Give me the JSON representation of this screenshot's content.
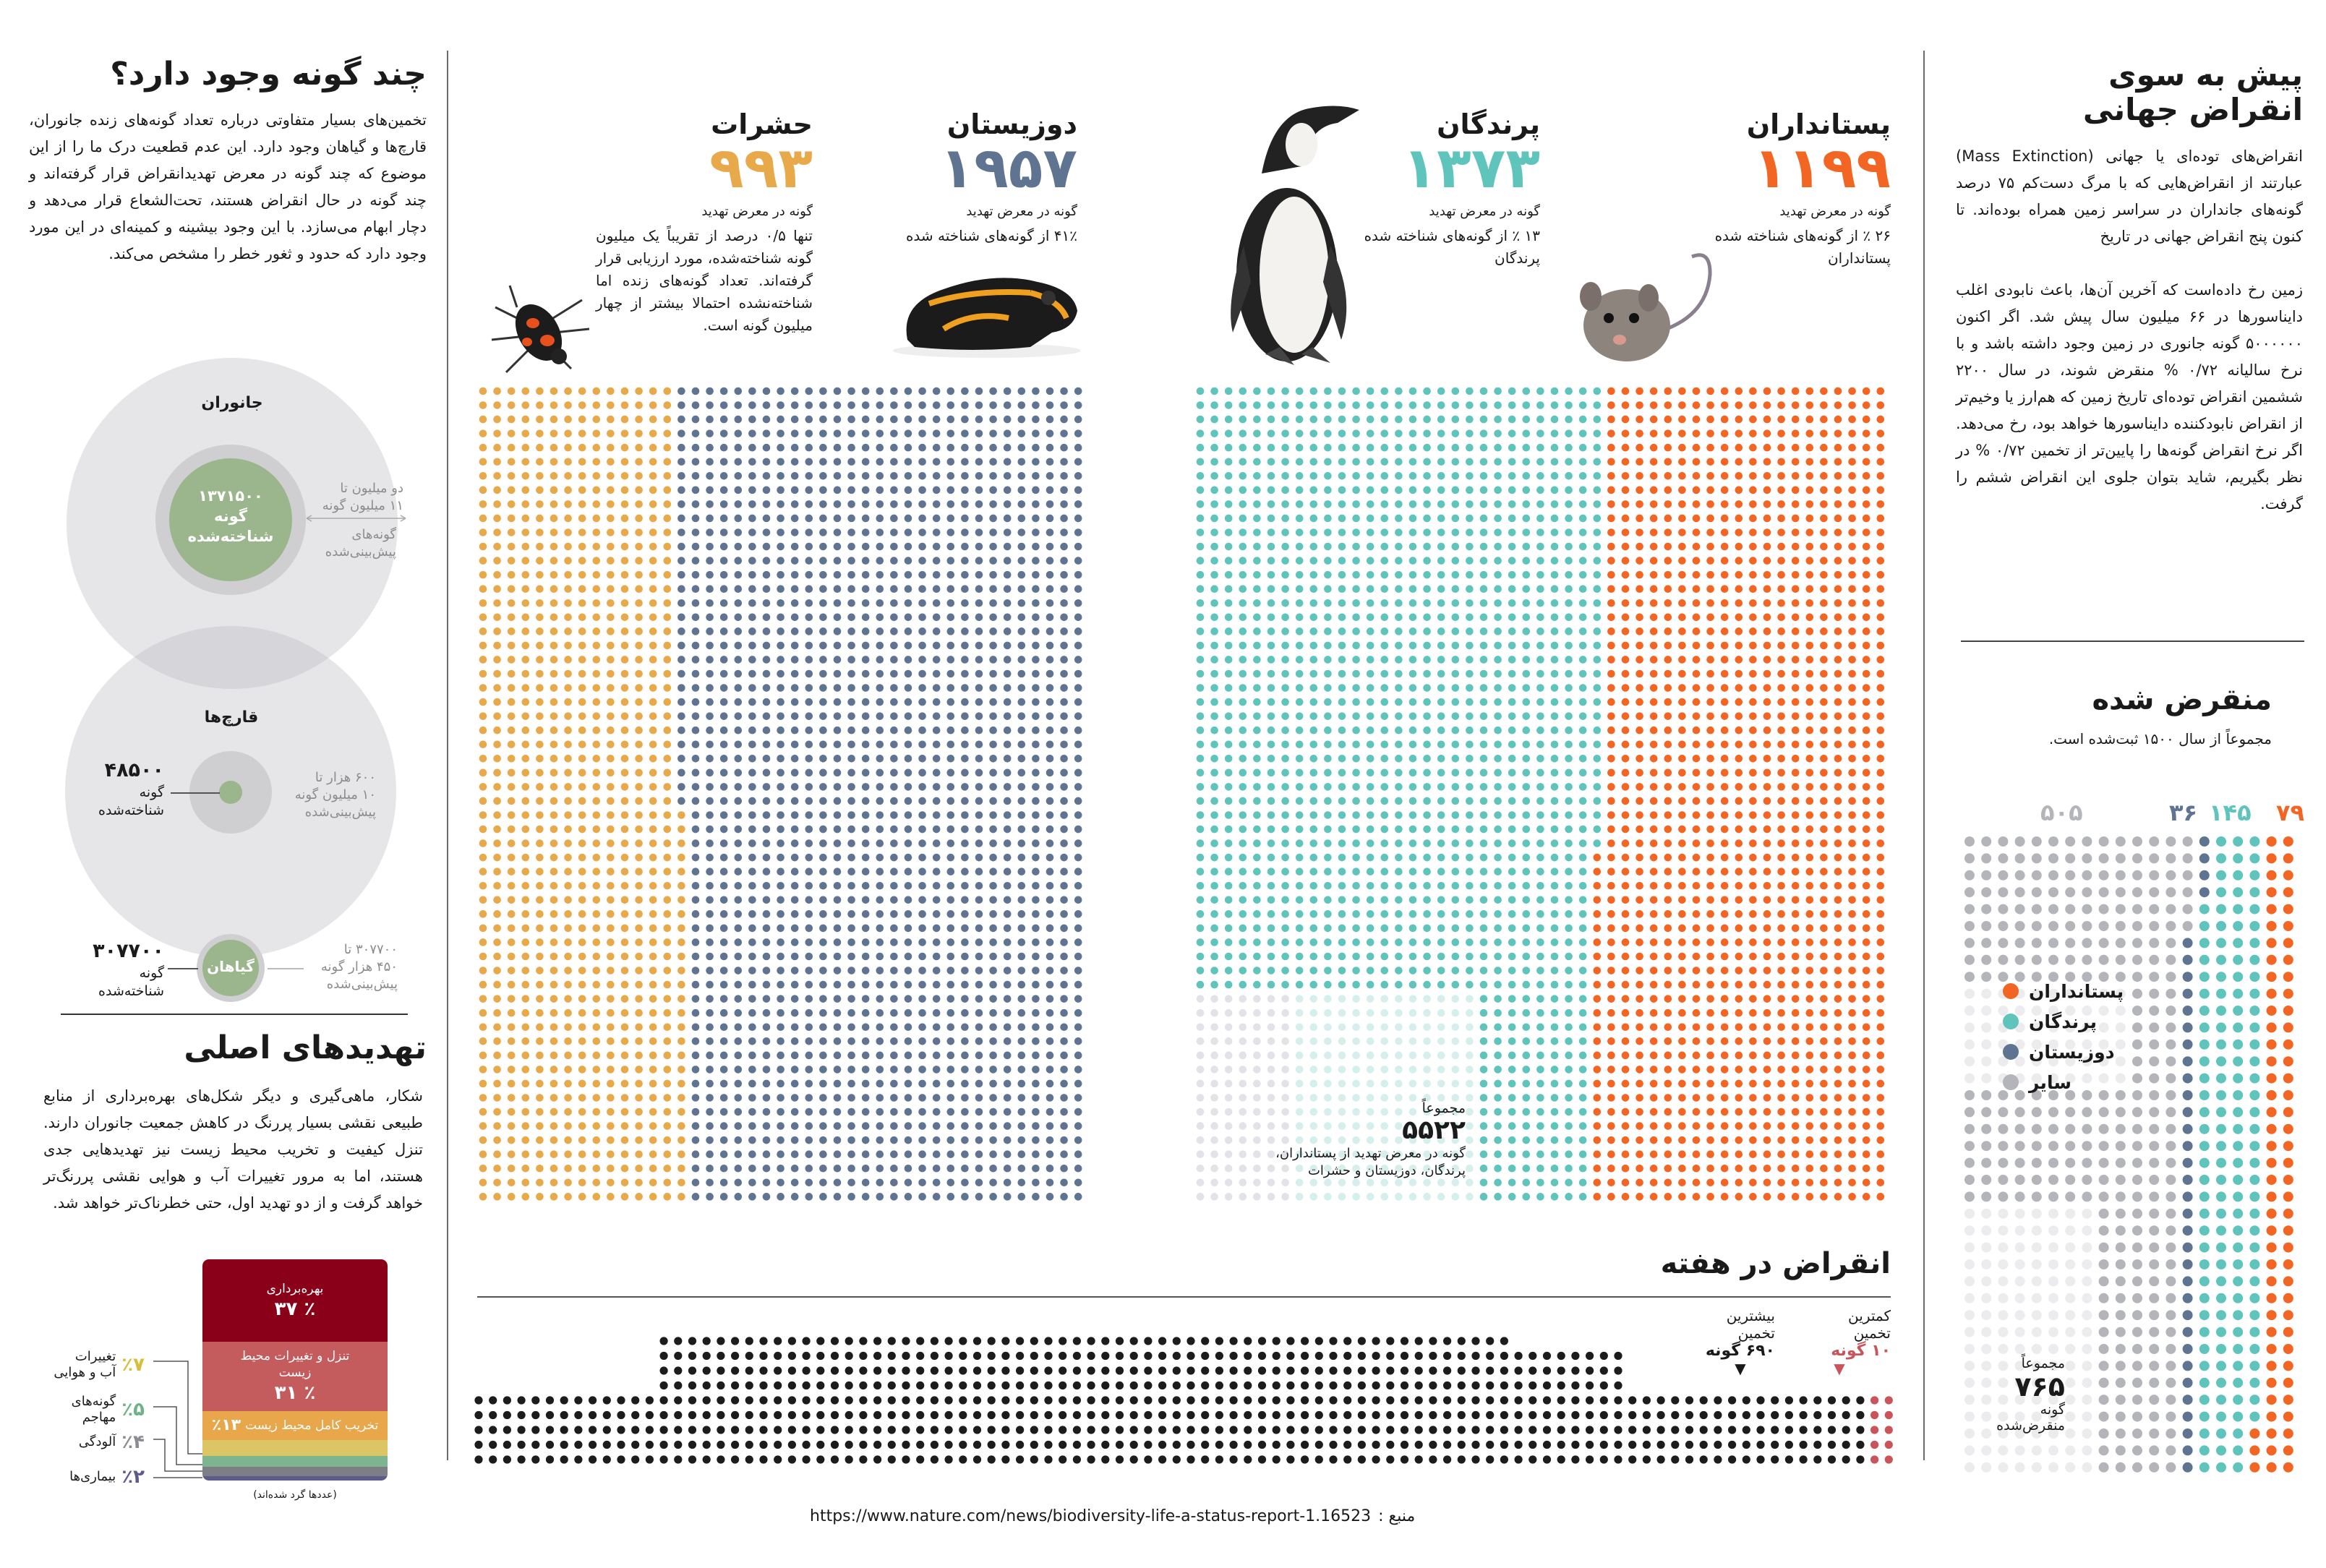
{
  "colors": {
    "mammals": "#f26522",
    "birds": "#5ec4bc",
    "amphibians": "#5f7491",
    "insects": "#e8a94a",
    "other": "#b4b5ba",
    "weekly_dots": "#1c1c1c",
    "weekly_min": "#c9545a",
    "known_green": "#9bb58c"
  },
  "left": {
    "title": "چند گونه وجود دارد؟",
    "body": "تخمین‌های بسیار متفاوتی درباره تعداد گونه‌های زنده جانوران، قارچ‌ها و گیاهان وجود دارد. این عدم قطعیت درک ما را از این موضوع که چند گونه در معرض تهدیدانقراض قرار گرفته‌اند و چند گونه در حال انقراض هستند، تحت‌الشعاع قرار می‌دهد و دچار ابهام می‌سازد. با این وجود بیشینه و کمینه‌ای در این مورد وجود دارد که حدود و ثغور خطر را مشخص می‌کند.",
    "animals": {
      "label": "جانوران",
      "known": "۱۳۷۱۵۰۰\nگونه\nشناخته‌شده",
      "estimate_top": "دو میلیون تا\n۱۱ میلیون گونه",
      "estimate_bottom": "گونه‌های\nپیش‌بینی‌شده"
    },
    "fungi": {
      "label": "قارچ‌ها",
      "known_value": "۴۸۵۰۰",
      "known_text": "گونه\nشناخته‌شده",
      "estimate": "۶۰۰ هزار تا\n۱۰ میلیون گونه\nپیش‌بینی‌شده"
    },
    "plants": {
      "label": "گیاهان",
      "known_value": "۳۰۷۷۰۰",
      "known_text": "گونه\nشناخته‌شده",
      "estimate": "۳۰۷۷۰۰ تا\n۴۵۰ هزار گونه\nپیش‌بینی‌شده"
    }
  },
  "threats": {
    "title": "تهدیدهای اصلی",
    "body": "شکار، ماهی‌گیری و دیگر شکل‌های بهره‌برداری از منابع طبیعی نقشی بسیار پررنگ در کاهش جمعیت جانوران دارند. تنزل کیفیت و تخریب محیط زیست نیز تهدیدهایی جدی هستند، اما به مرور تغییرات آب و هوایی نقشی پررنگ‌تر خواهد گرفت و از دو تهدید اول، حتی خطرناک‌تر خواهد شد.",
    "segments": [
      {
        "label": "بهره‌برداری",
        "pct_text": "٪ ۳۷",
        "pct": 37,
        "color": "#8b0019"
      },
      {
        "label": "تنزل و تغییرات محیط زیست",
        "pct_text": "٪ ۳۱",
        "pct": 31,
        "color": "#c45b5d"
      },
      {
        "label": "تخریب کامل محیط زیست",
        "pct_text": "٪۱۳",
        "pct": 13,
        "color": "#e9a74b"
      },
      {
        "label": "تغییرات آب و هوایی",
        "pct_text": "٪۷",
        "pct": 7,
        "color": "#dcc565"
      },
      {
        "label": "گونه‌های مهاجم",
        "pct_text": "٪۵",
        "pct": 5,
        "color": "#7db58e"
      },
      {
        "label": "آلودگی",
        "pct_text": "٪۴",
        "pct": 4,
        "color": "#7e7e86"
      },
      {
        "label": "بیماری‌ها",
        "pct_text": "٪۲",
        "pct": 2,
        "color": "#5d5a8c"
      }
    ],
    "side_labels": [
      {
        "text": "تغییرات\nآب و هوایی",
        "pct_text": "٪۷",
        "color": "#d8bd3d"
      },
      {
        "text": "گونه‌های\nمهاجم",
        "pct_text": "٪۵",
        "color": "#6db386"
      },
      {
        "text": "آلودگی",
        "pct_text": "٪۴",
        "color": "#8b8b92"
      },
      {
        "text": "بیماری‌ها",
        "pct_text": "٪۲",
        "color": "#5d5a8c"
      }
    ],
    "note": "(عددها گرد شده‌اند)"
  },
  "species": [
    {
      "key": "insects",
      "name": "حشرات",
      "count_text": "۹۹۳",
      "caption": "گونه در معرض تهدید",
      "desc": "تنها ۰/۵ درصد از تقریباً یک میلیون گونه شناخته‌شده، مورد ارزیابی قرار گرفته‌اند. تعداد گونه‌های زنده اما شناخته‌نشده احتمالا بیشتر از چهار میلیون گونه است."
    },
    {
      "key": "amphibians",
      "name": "دوزیستان",
      "count_text": "۱۹۵۷",
      "caption": "گونه در معرض تهدید",
      "desc": "۴۱٪ از گونه‌های شناخته شده"
    },
    {
      "key": "birds",
      "name": "پرندگان",
      "count_text": "۱۳۷۳",
      "caption": "گونه در معرض تهدید",
      "desc": "۱۳ ٪ از گونه‌های شناخته شده\nپرندگان"
    },
    {
      "key": "mammals",
      "name": "پستانداران",
      "count_text": "۱۱۹۹",
      "caption": "گونه در معرض تهدید",
      "desc": "۲۶ ٪ از گونه‌های شناخته شده\nپستانداران"
    }
  ],
  "threatened_total": {
    "prefix": "مجموعاً",
    "value": "۵۵۲۲",
    "text": "گونه در معرض تهدید از پستانداران،\nپرندگان، دوزیستان و حشرات"
  },
  "weekly": {
    "title": "انقراض در هفته",
    "min_label": "کمترین\nتخمین",
    "min_value": "۱۰ گونه",
    "max_label": "بیشترین\nتخمین",
    "max_value": "۶۹۰ گونه"
  },
  "right": {
    "title": "پیش به سوی\nانقراض جهانی",
    "body_1": "انقراض‌های توده‌ای یا جهانی (Mass Extinction) عبارتند از انقراض‌هایی که با مرگ دست‌کم ۷۵ درصد گونه‌های جانداران در سراسر زمین همراه بوده‌اند. تا کنون پنج انقراض جهانی در تاریخ",
    "body_2": "زمین رخ داده‌است که آخرین آن‌ها، باعث نابودی اغلب دایناسورها در ۶۶ میلیون سال پیش شد. اگر اکنون ۵۰۰۰۰۰۰ گونه جانوری در زمین وجود داشته باشد و با نرخ سالیانه ۰/۷۲ % منقرض شوند، در سال ۲۲۰۰ ششمین انقراض توده‌ای تاریخ زمین که هم‌ارز یا وخیم‌تر از انقراض نابودکننده دایناسورها خواهد بود، رخ می‌دهد. اگر نرخ انقراض گونه‌ها را پایین‌تر از تخمین ۰/۷۲ % در نظر بگیریم، شاید بتوان جلوی این انقراض ششم را گرفت."
  },
  "extinct": {
    "title": "منقرض شده",
    "subtitle": "مجموعاً از سال ۱۵۰۰ ثبت‌شده است.",
    "counts_text": {
      "mammals": "۷۹",
      "birds": "۱۴۵",
      "amphibians": "۳۶",
      "other": "۵۰۵"
    },
    "legend": {
      "mammals": "پستانداران",
      "birds": "پرندگان",
      "amphibians": "دوزیستان",
      "other": "سایر"
    },
    "total_prefix": "مجموعاً",
    "total_value": "۷۶۵",
    "total_text": "گونه\nمنقرض‌شده"
  },
  "source": {
    "label": "منبع :",
    "url": "https://www.nature.com/news/biodiversity-life-a-status-report-1.16523"
  },
  "chart_data": [
    {
      "type": "dot-matrix",
      "title": "",
      "categories": [
        "حشرات",
        "دوزیستان"
      ],
      "values": [
        993,
        1957
      ]
    },
    {
      "type": "dot-matrix",
      "title": "",
      "categories": [
        "پرندگان",
        "پستانداران"
      ],
      "values": [
        1373,
        1199
      ],
      "total_all_groups": 5522
    },
    {
      "type": "dot-matrix",
      "title": "منقرض شده",
      "categories": [
        "پستانداران",
        "پرندگان",
        "دوزیستان",
        "سایر"
      ],
      "values": [
        79,
        145,
        36,
        505
      ],
      "total": 765
    },
    {
      "type": "dot-matrix",
      "title": "انقراض در هفته",
      "categories": [
        "کمترین تخمین",
        "بیشترین تخمین"
      ],
      "values": [
        10,
        690
      ]
    },
    {
      "type": "bar",
      "orientation": "stacked",
      "title": "تهدیدهای اصلی",
      "categories": [
        "بهره‌برداری",
        "تنزل و تغییرات محیط زیست",
        "تخریب کامل محیط زیست",
        "تغییرات آب و هوایی",
        "گونه‌های مهاجم",
        "آلودگی",
        "بیماری‌ها"
      ],
      "values": [
        37,
        31,
        13,
        7,
        5,
        4,
        2
      ],
      "unit": "%"
    }
  ]
}
